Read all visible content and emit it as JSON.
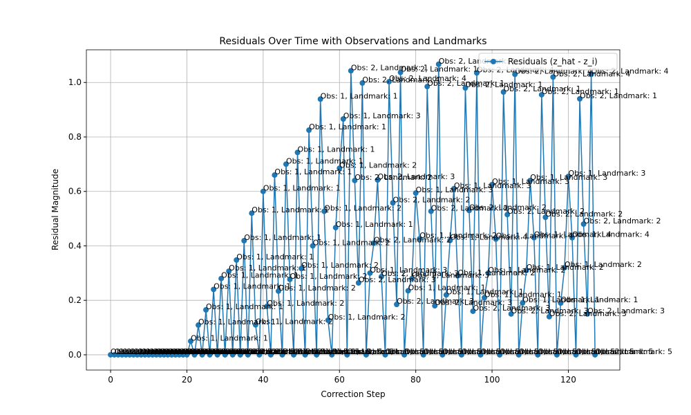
{
  "chart_data": {
    "type": "line",
    "title": "Residuals Over Time with Observations and Landmarks",
    "x_label": "Correction Step",
    "y_label": "Residual Magnitude",
    "x": [
      0,
      1,
      2,
      3,
      4,
      5,
      6,
      7,
      8,
      9,
      10,
      11,
      12,
      13,
      14,
      15,
      16,
      17,
      18,
      19,
      20,
      21,
      22,
      23,
      24,
      25,
      26,
      27,
      28,
      29,
      30,
      31,
      32,
      33,
      34,
      35,
      36,
      37,
      38,
      39,
      40,
      41,
      42,
      43,
      44,
      45,
      46,
      47,
      48,
      49,
      50,
      51,
      52,
      53,
      54,
      55,
      56,
      57,
      58,
      59,
      60,
      61,
      62,
      63,
      64,
      65,
      66,
      67,
      68,
      69,
      70,
      71,
      72,
      73,
      74,
      75,
      76,
      77,
      78,
      79,
      80,
      81,
      82,
      83,
      84,
      85,
      86,
      87,
      88,
      89,
      90,
      91,
      92,
      93,
      94,
      95,
      96,
      97,
      98,
      99,
      100,
      101,
      102,
      103,
      104,
      105,
      106,
      107,
      108,
      109,
      110,
      111,
      112,
      113,
      114,
      115,
      116,
      117,
      118,
      119,
      120,
      121,
      122,
      123,
      124,
      125,
      126,
      127
    ],
    "series": [
      {
        "name": "Residuals (z_hat - z_i)",
        "color": "#1f77b4",
        "values": [
          0,
          0,
          0,
          0,
          0,
          0,
          0,
          0,
          0,
          0,
          0,
          0,
          0,
          0,
          0,
          0,
          0,
          0,
          0,
          0,
          0,
          0.05,
          0,
          0.109,
          0,
          0.165,
          0,
          0.24,
          0,
          0.28,
          0,
          0.307,
          0,
          0.348,
          0,
          0.419,
          0,
          0.52,
          0.11,
          0,
          0.6,
          0.178,
          0,
          0.66,
          0.234,
          0,
          0.7,
          0.277,
          0,
          0.743,
          0.317,
          0,
          0.825,
          0.4,
          0,
          0.939,
          0.527,
          0.127,
          0,
          0.467,
          0.685,
          0.866,
          0,
          1.043,
          0.64,
          0.264,
          0.998,
          0,
          0.3,
          0.41,
          0.642,
          0.287,
          0,
          1.003,
          0.558,
          0.185,
          1.037,
          0,
          0.235,
          0.28,
          0.594,
          0.426,
          0,
          0.985,
          0.527,
          0.18,
          1.067,
          0,
          0.22,
          0.42,
          0.61,
          0.29,
          0,
          0.98,
          0.53,
          0.16,
          1.035,
          0,
          0.21,
          0.3,
          0.625,
          0.425,
          0,
          0.965,
          0.515,
          0.15,
          1.03,
          0,
          0.19,
          0.31,
          0.64,
          0.43,
          0,
          0.955,
          0.505,
          0.14,
          1.02,
          0,
          0.19,
          0.32,
          0.655,
          0.43,
          0,
          0.94,
          0.48,
          0.15,
          1.03,
          0
        ]
      }
    ],
    "annotations": [
      "Obs: 1, Landmark: 5",
      "Obs: 1, Landmark: 5",
      "Obs: 1, Landmark: 5",
      "Obs: 1, Landmark: 5",
      "Obs: 1, Landmark: 5",
      "Obs: 1, Landmark: 5",
      "Obs: 1, Landmark: 5",
      "Obs: 1, Landmark: 5",
      "Obs: 1, Landmark: 5",
      "Obs: 1, Landmark: 5",
      "Obs: 1, Landmark: 5",
      "Obs: 1, Landmark: 5",
      "Obs: 1, Landmark: 5",
      "Obs: 1, Landmark: 5",
      "Obs: 1, Landmark: 5",
      "Obs: 1, Landmark: 5",
      "Obs: 1, Landmark: 5",
      "Obs: 1, Landmark: 5",
      "Obs: 1, Landmark: 5",
      "Obs: 1, Landmark: 5",
      "Obs: 1, Landmark: 5",
      "Obs: 1, Landmark: 1",
      "Obs: 1, Landmark: 5",
      "Obs: 1, Landmark: 1",
      "Obs: 1, Landmark: 5",
      "Obs: 1, Landmark: 1",
      "Obs: 1, Landmark: 5",
      "Obs: 1, Landmark: 1",
      "Obs: 1, Landmark: 5",
      "Obs: 1, Landmark: 1",
      "Obs: 1, Landmark: 5",
      "Obs: 1, Landmark: 1",
      "Obs: 1, Landmark: 5",
      "Obs: 1, Landmark: 1",
      "Obs: 1, Landmark: 5",
      "Obs: 1, Landmark: 1",
      "Obs: 1, Landmark: 5",
      "Obs: 1, Landmark: 1",
      "Obs: 1, Landmark: 2",
      "Obs: 1, Landmark: 5",
      "Obs: 1, Landmark: 1",
      "Obs: 1, Landmark: 2",
      "Obs: 1, Landmark: 5",
      "Obs: 1, Landmark: 1",
      "Obs: 1, Landmark: 2",
      "Obs: 1, Landmark: 5",
      "Obs: 1, Landmark: 1",
      "Obs: 1, Landmark: 2",
      "Obs: 1, Landmark: 5",
      "Obs: 1, Landmark: 1",
      "Obs: 1, Landmark: 2",
      "Obs: 1, Landmark: 5",
      "Obs: 1, Landmark: 1",
      "Obs: 1, Landmark: 2",
      "Obs: 1, Landmark: 5",
      "Obs: 1, Landmark: 1",
      "Obs: 1, Landmark: 2",
      "Obs: 1, Landmark: 2",
      "Obs: 1, Landmark: 5",
      "Obs: 1, Landmark: 1",
      "Obs: 1, Landmark: 2",
      "Obs: 1, Landmark: 3",
      "Obs: 1, Landmark: 5",
      "Obs: 2, Landmark: 1",
      "Obs: 2, Landmark: 2",
      "Obs: 2, Landmark: 3",
      "Obs: 2, Landmark: 4",
      "Obs: 1, Landmark: 5",
      "Obs: 1, Landmark: 3",
      "Obs: 2, Landmark: 2",
      "Obs: 2, Landmark: 3",
      "Obs: 2, Landmark: 3",
      "Obs: 1, Landmark: 5",
      "Obs: 2, Landmark: 4",
      "Obs: 2, Landmark: 2",
      "Obs: 2, Landmark: 3",
      "Obs: 2, Landmark: 1",
      "Obs: 1, Landmark: 5",
      "Obs: 1, Landmark: 1",
      "Obs: 2, Landmark: 3",
      "Obs: 1, Landmark: 3",
      "Obs: 1, Landmark: 2",
      "Obs: 1, Landmark: 5",
      "Obs: 2, Landmark: 1",
      "Obs: 2, Landmark: 2",
      "Obs: 2, Landmark: 3",
      "Obs: 2, Landmark: 1",
      "Obs: 1, Landmark: 5",
      "Obs: 1, Landmark: 1",
      "Obs: 1, Landmark: 4",
      "Obs: 1, Landmark: 3",
      "Obs: 1, Landmark: 2",
      "Obs: 1, Landmark: 5",
      "Obs: 2, Landmark: 1",
      "Obs: 2, Landmark: 2",
      "Obs: 2, Landmark: 3",
      "Obs: 2, Landmark: 4",
      "Obs: 1, Landmark: 5",
      "Obs: 1, Landmark: 1",
      "Obs: 1, Landmark: 2",
      "Obs: 1, Landmark: 3",
      "Obs: 1, Landmark: 4",
      "Obs: 1, Landmark: 5",
      "Obs: 2, Landmark: 1",
      "Obs: 2, Landmark: 2",
      "Obs: 2, Landmark: 3",
      "Obs: 2, Landmark: 4",
      "Obs: 1, Landmark: 5",
      "Obs: 1, Landmark: 1",
      "Obs: 1, Landmark: 2",
      "Obs: 1, Landmark: 3",
      "Obs: 1, Landmark: 4",
      "Obs: 1, Landmark: 5",
      "Obs: 2, Landmark: 1",
      "Obs: 2, Landmark: 2",
      "Obs: 2, Landmark: 3",
      "Obs: 2, Landmark: 4",
      "Obs: 1, Landmark: 5",
      "Obs: 1, Landmark: 1",
      "Obs: 1, Landmark: 2",
      "Obs: 1, Landmark: 3",
      "Obs: 1, Landmark: 4",
      "Obs: 1, Landmark: 5",
      "Obs: 2, Landmark: 1",
      "Obs: 2, Landmark: 2",
      "Obs: 2, Landmark: 3",
      "Obs: 2, Landmark: 4",
      "Obs: 2, Landmark: 5"
    ],
    "xlim": [
      -6.35,
      133.5
    ],
    "ylim": [
      -0.056,
      1.12
    ],
    "xticks": [
      0,
      20,
      40,
      60,
      80,
      100,
      120
    ],
    "yticks": [
      {
        "value": 0,
        "label": "0.0"
      },
      0.2,
      0.4,
      0.6,
      0.8,
      {
        "value": 1,
        "label": "1.0"
      }
    ],
    "grid": true,
    "legend": "upper right"
  }
}
